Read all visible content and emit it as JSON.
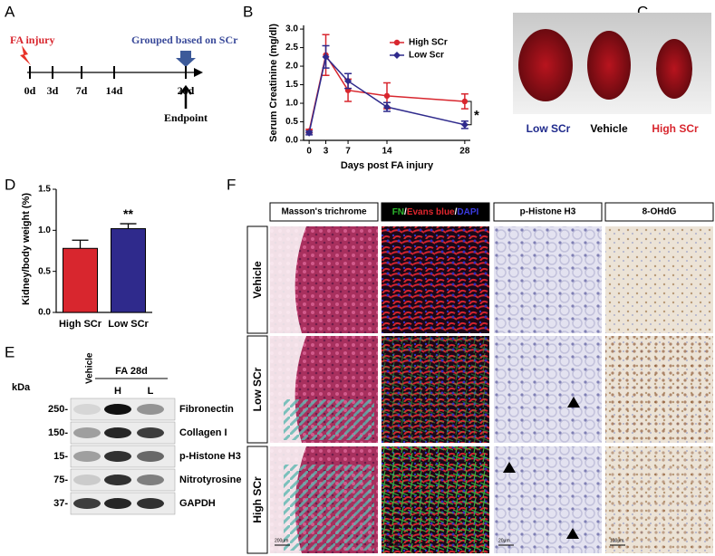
{
  "panel_labels": [
    "A",
    "B",
    "C",
    "D",
    "E",
    "F"
  ],
  "timeline": {
    "injury": "FA injury",
    "grouping": "Grouped based on SCr",
    "days": [
      "0d",
      "3d",
      "7d",
      "14d",
      "28d"
    ],
    "endpoint": "Endpoint"
  },
  "chart_data": [
    {
      "type": "line",
      "xlabel": "Days post FA injury",
      "ylabel": "Serum Creatinine (mg/dl)",
      "x": [
        0,
        3,
        7,
        14,
        28
      ],
      "xlim": [
        -1,
        29
      ],
      "xticks": [
        0,
        3,
        7,
        14,
        28
      ],
      "ylim": [
        0,
        3.1
      ],
      "yticks": [
        {
          "value": 0,
          "label": "0.0"
        },
        0.5,
        {
          "value": 1,
          "label": "1.0"
        },
        1.5,
        {
          "value": 2,
          "label": "2.0"
        },
        2.5,
        {
          "value": 3,
          "label": "3.0"
        }
      ],
      "legend": "upper right",
      "annotation": "*",
      "series": [
        {
          "name": "High SCr",
          "color": "#d8262e",
          "marker": "circle",
          "values": [
            0.25,
            2.3,
            1.35,
            1.2,
            1.05
          ],
          "errors": [
            0.05,
            0.55,
            0.3,
            0.35,
            0.2
          ]
        },
        {
          "name": "Low Scr",
          "color": "#2f2a8c",
          "marker": "diamond",
          "values": [
            0.2,
            2.25,
            1.6,
            0.9,
            0.42
          ],
          "errors": [
            0.05,
            0.3,
            0.2,
            0.12,
            0.1
          ]
        }
      ]
    },
    {
      "type": "bar",
      "ylabel": "Kidney/body weight (%)",
      "categories": [
        "High SCr",
        "Low SCr"
      ],
      "values": [
        0.78,
        1.02
      ],
      "errors": [
        0.1,
        0.06
      ],
      "colors": [
        "#d8262e",
        "#2f2a8c"
      ],
      "ylim": [
        0,
        1.5
      ],
      "yticks": [
        {
          "value": 0,
          "label": "0.0"
        },
        0.5,
        {
          "value": 1,
          "label": "1.0"
        },
        1.5
      ],
      "annotation": "**"
    }
  ],
  "photo": {
    "labels": [
      "Low SCr",
      "Vehicle",
      "High SCr"
    ],
    "colors": [
      "#1f2a8c",
      "#000000",
      "#d8262e"
    ]
  },
  "blot": {
    "kda": "kDa",
    "lanes": [
      "Vehicle",
      "H",
      "L"
    ],
    "group": "FA 28d",
    "rows": [
      {
        "marker": "250-",
        "protein": "Fibronectin"
      },
      {
        "marker": "150-",
        "protein": "Collagen I"
      },
      {
        "marker": "15-",
        "protein": "p-Histone H3"
      },
      {
        "marker": "75-",
        "protein": "Nitrotyrosine"
      },
      {
        "marker": "37-",
        "protein": "GAPDH"
      }
    ]
  },
  "histology": {
    "headers": [
      "Masson's trichrome",
      "FN/Evans blue/DAPI",
      "p-Histone H3",
      "8-OHdG"
    ],
    "if_parts": [
      "FN",
      "/",
      "Evans blue",
      "/",
      "DAPI"
    ],
    "if_colors": [
      "#2db82d",
      "#ffffff",
      "#e0262e",
      "#ffffff",
      "#3a3ae0"
    ],
    "rows": [
      "Vehicle",
      "Low SCr",
      "High SCr"
    ],
    "scale_bars": [
      "200μm",
      "50μm",
      "20μm",
      "100μm"
    ]
  }
}
